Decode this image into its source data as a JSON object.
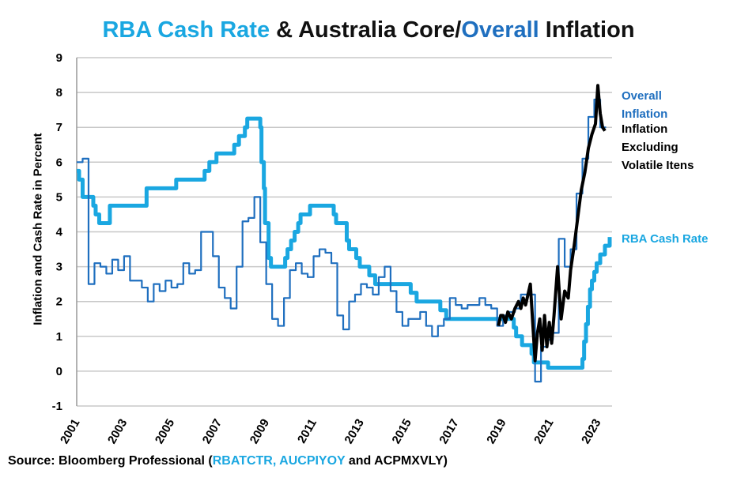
{
  "title": {
    "part1": "RBA Cash Rate",
    "part2": " & Australia Core/",
    "part3": "Overall",
    "part4": " Inflation"
  },
  "source": {
    "prefix": "Source: Bloomberg Professional (",
    "codes_blue": "RBATCTR, AUCPIYOY",
    "suffix": " and ACPMXVLY)"
  },
  "chart_data": {
    "type": "line",
    "title": "RBA Cash Rate & Australia Core/Overall Inflation",
    "ylabel": "Inflation and Cash Rate in Percent",
    "xlabel": "",
    "ylim": [
      -1,
      9
    ],
    "xlim": [
      2001,
      2023.6
    ],
    "yticks": [
      "-1",
      "0",
      "1",
      "2",
      "3",
      "4",
      "5",
      "6",
      "7",
      "8",
      "9"
    ],
    "xticks": [
      "2001",
      "2003",
      "2005",
      "2007",
      "2009",
      "2011",
      "2013",
      "2015",
      "2017",
      "2019",
      "2021",
      "2023"
    ],
    "grid": true,
    "series": [
      {
        "name": "RBA Cash Rate",
        "color": "#1aa7e1",
        "step": true,
        "points": [
          [
            2001.0,
            5.75
          ],
          [
            2001.1,
            5.5
          ],
          [
            2001.25,
            5.0
          ],
          [
            2001.7,
            4.75
          ],
          [
            2001.8,
            4.5
          ],
          [
            2001.95,
            4.25
          ],
          [
            2002.4,
            4.75
          ],
          [
            2003.95,
            5.25
          ],
          [
            2005.2,
            5.5
          ],
          [
            2006.4,
            5.75
          ],
          [
            2006.6,
            6.0
          ],
          [
            2006.9,
            6.25
          ],
          [
            2007.65,
            6.5
          ],
          [
            2007.85,
            6.75
          ],
          [
            2008.1,
            7.0
          ],
          [
            2008.2,
            7.25
          ],
          [
            2008.75,
            7.0
          ],
          [
            2008.8,
            6.0
          ],
          [
            2008.9,
            5.25
          ],
          [
            2008.95,
            4.25
          ],
          [
            2009.1,
            3.25
          ],
          [
            2009.2,
            3.0
          ],
          [
            2009.8,
            3.25
          ],
          [
            2009.9,
            3.5
          ],
          [
            2010.05,
            3.75
          ],
          [
            2010.2,
            4.0
          ],
          [
            2010.35,
            4.25
          ],
          [
            2010.45,
            4.5
          ],
          [
            2010.85,
            4.75
          ],
          [
            2011.85,
            4.5
          ],
          [
            2011.95,
            4.25
          ],
          [
            2012.4,
            3.75
          ],
          [
            2012.5,
            3.5
          ],
          [
            2012.8,
            3.25
          ],
          [
            2012.95,
            3.0
          ],
          [
            2013.35,
            2.75
          ],
          [
            2013.6,
            2.5
          ],
          [
            2015.1,
            2.25
          ],
          [
            2015.35,
            2.0
          ],
          [
            2016.35,
            1.75
          ],
          [
            2016.6,
            1.5
          ],
          [
            2019.45,
            1.25
          ],
          [
            2019.55,
            1.0
          ],
          [
            2019.8,
            0.75
          ],
          [
            2020.2,
            0.5
          ],
          [
            2020.3,
            0.25
          ],
          [
            2020.9,
            0.1
          ],
          [
            2022.35,
            0.35
          ],
          [
            2022.42,
            0.85
          ],
          [
            2022.5,
            1.35
          ],
          [
            2022.58,
            1.85
          ],
          [
            2022.67,
            2.35
          ],
          [
            2022.75,
            2.6
          ],
          [
            2022.85,
            2.85
          ],
          [
            2022.95,
            3.1
          ],
          [
            2023.1,
            3.35
          ],
          [
            2023.3,
            3.6
          ],
          [
            2023.5,
            3.85
          ]
        ]
      },
      {
        "name": "Overall Inflation",
        "color": "#1f6fbf",
        "step": true,
        "points": [
          [
            2001.0,
            6.0
          ],
          [
            2001.25,
            6.1
          ],
          [
            2001.5,
            2.5
          ],
          [
            2001.75,
            3.1
          ],
          [
            2002.0,
            3.0
          ],
          [
            2002.25,
            2.8
          ],
          [
            2002.5,
            3.2
          ],
          [
            2002.75,
            2.9
          ],
          [
            2003.0,
            3.3
          ],
          [
            2003.25,
            2.6
          ],
          [
            2003.75,
            2.4
          ],
          [
            2004.0,
            2.0
          ],
          [
            2004.25,
            2.5
          ],
          [
            2004.5,
            2.3
          ],
          [
            2004.75,
            2.6
          ],
          [
            2005.0,
            2.4
          ],
          [
            2005.25,
            2.5
          ],
          [
            2005.5,
            3.1
          ],
          [
            2005.75,
            2.8
          ],
          [
            2006.0,
            2.9
          ],
          [
            2006.25,
            4.0
          ],
          [
            2006.75,
            3.3
          ],
          [
            2007.0,
            2.4
          ],
          [
            2007.25,
            2.1
          ],
          [
            2007.5,
            1.8
          ],
          [
            2007.75,
            3.0
          ],
          [
            2008.0,
            4.3
          ],
          [
            2008.25,
            4.4
          ],
          [
            2008.5,
            5.0
          ],
          [
            2008.75,
            3.7
          ],
          [
            2009.0,
            2.5
          ],
          [
            2009.25,
            1.5
          ],
          [
            2009.5,
            1.3
          ],
          [
            2009.75,
            2.1
          ],
          [
            2010.0,
            2.9
          ],
          [
            2010.25,
            3.1
          ],
          [
            2010.5,
            2.8
          ],
          [
            2010.75,
            2.7
          ],
          [
            2011.0,
            3.3
          ],
          [
            2011.25,
            3.5
          ],
          [
            2011.5,
            3.4
          ],
          [
            2011.75,
            3.1
          ],
          [
            2012.0,
            1.6
          ],
          [
            2012.25,
            1.2
          ],
          [
            2012.5,
            2.0
          ],
          [
            2012.75,
            2.2
          ],
          [
            2013.0,
            2.5
          ],
          [
            2013.25,
            2.4
          ],
          [
            2013.5,
            2.2
          ],
          [
            2013.75,
            2.7
          ],
          [
            2014.0,
            3.0
          ],
          [
            2014.25,
            2.3
          ],
          [
            2014.5,
            1.7
          ],
          [
            2014.75,
            1.3
          ],
          [
            2015.0,
            1.5
          ],
          [
            2015.5,
            1.7
          ],
          [
            2015.75,
            1.3
          ],
          [
            2016.0,
            1.0
          ],
          [
            2016.25,
            1.3
          ],
          [
            2016.5,
            1.5
          ],
          [
            2016.75,
            2.1
          ],
          [
            2017.0,
            1.9
          ],
          [
            2017.25,
            1.8
          ],
          [
            2017.5,
            1.9
          ],
          [
            2018.0,
            2.1
          ],
          [
            2018.25,
            1.9
          ],
          [
            2018.5,
            1.8
          ],
          [
            2018.75,
            1.3
          ],
          [
            2019.0,
            1.6
          ],
          [
            2019.25,
            1.7
          ],
          [
            2019.5,
            1.8
          ],
          [
            2019.75,
            2.2
          ],
          [
            2020.35,
            -0.3
          ],
          [
            2020.6,
            0.7
          ],
          [
            2020.85,
            0.9
          ],
          [
            2021.1,
            1.1
          ],
          [
            2021.35,
            3.8
          ],
          [
            2021.6,
            3.0
          ],
          [
            2021.85,
            3.5
          ],
          [
            2022.1,
            5.1
          ],
          [
            2022.35,
            6.1
          ],
          [
            2022.6,
            7.3
          ],
          [
            2022.85,
            7.8
          ],
          [
            2023.1,
            7.0
          ],
          [
            2023.35,
            7.0
          ]
        ]
      },
      {
        "name": "Inflation Excluding Volatile Itens",
        "color": "#000000",
        "step": false,
        "points": [
          [
            2018.8,
            1.3
          ],
          [
            2018.9,
            1.6
          ],
          [
            2019.0,
            1.6
          ],
          [
            2019.1,
            1.4
          ],
          [
            2019.2,
            1.7
          ],
          [
            2019.35,
            1.5
          ],
          [
            2019.5,
            1.8
          ],
          [
            2019.65,
            2.0
          ],
          [
            2019.75,
            1.8
          ],
          [
            2019.85,
            2.1
          ],
          [
            2019.95,
            1.9
          ],
          [
            2020.05,
            2.2
          ],
          [
            2020.15,
            2.5
          ],
          [
            2020.25,
            1.4
          ],
          [
            2020.35,
            0.3
          ],
          [
            2020.45,
            1.1
          ],
          [
            2020.55,
            1.5
          ],
          [
            2020.65,
            0.6
          ],
          [
            2020.75,
            1.6
          ],
          [
            2020.85,
            0.7
          ],
          [
            2020.95,
            1.4
          ],
          [
            2021.05,
            0.8
          ],
          [
            2021.15,
            1.6
          ],
          [
            2021.3,
            3.0
          ],
          [
            2021.45,
            1.5
          ],
          [
            2021.6,
            2.3
          ],
          [
            2021.75,
            2.1
          ],
          [
            2021.85,
            2.9
          ],
          [
            2022.0,
            3.6
          ],
          [
            2022.15,
            4.4
          ],
          [
            2022.3,
            5.2
          ],
          [
            2022.45,
            5.7
          ],
          [
            2022.6,
            6.4
          ],
          [
            2022.75,
            6.8
          ],
          [
            2022.9,
            7.1
          ],
          [
            2023.0,
            8.2
          ],
          [
            2023.1,
            7.4
          ],
          [
            2023.2,
            7.0
          ],
          [
            2023.3,
            6.9
          ]
        ]
      }
    ],
    "labels": {
      "overall": [
        "Overall",
        "Inflation"
      ],
      "core": [
        "Inflation",
        "Excluding",
        "Volatile Itens"
      ],
      "rba": "RBA Cash Rate"
    }
  }
}
